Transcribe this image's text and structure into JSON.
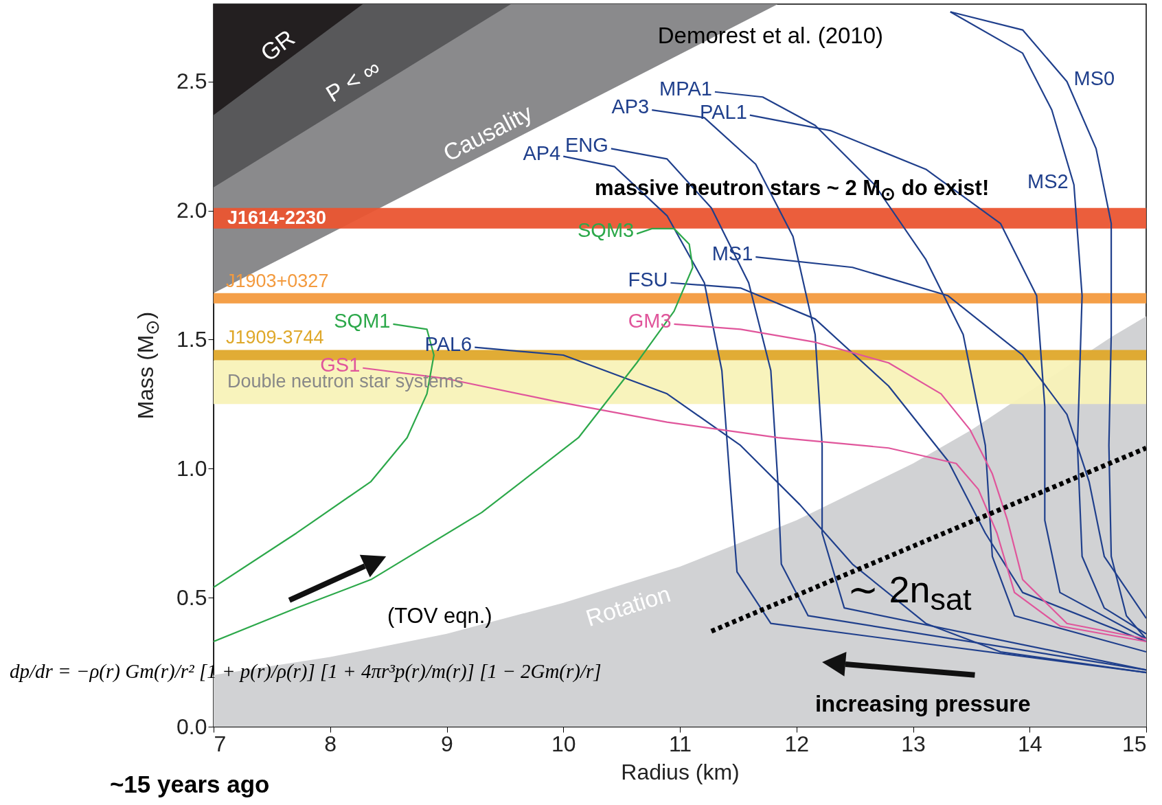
{
  "chart_data": {
    "type": "line",
    "xlabel": "Radius (km)",
    "ylabel": "Mass (M$_{⊙}$)",
    "xlim": [
      7,
      15
    ],
    "ylim": [
      0,
      2.8
    ],
    "xticks": [
      7,
      8,
      9,
      10,
      11,
      12,
      13,
      14,
      15
    ],
    "yticks": [
      {
        "value": 0,
        "label": "0.0"
      },
      {
        "value": 0.5,
        "label": "0.5"
      },
      {
        "value": 1,
        "label": "1.0"
      },
      {
        "value": 1.5,
        "label": "1.5"
      },
      {
        "value": 2,
        "label": "2.0"
      },
      {
        "value": 2.5,
        "label": "2.5"
      }
    ],
    "bands": [
      {
        "axis": "y",
        "from": 1.25,
        "to": 1.42,
        "label": "Double neutron star systems",
        "color": "#f8f2b8"
      },
      {
        "axis": "y",
        "from": 1.42,
        "to": 1.46,
        "label": "J1909-3744",
        "color": "#dfa82a"
      },
      {
        "axis": "y",
        "from": 1.64,
        "to": 1.68,
        "label": "J1903+0327",
        "color": "#f39a3e"
      },
      {
        "axis": "y",
        "from": 1.93,
        "to": 2.01,
        "label": "J1614-2230",
        "color": "#ea5532"
      }
    ],
    "series": [
      {
        "name": "Causality",
        "type": "area",
        "color": "#8a8a8c",
        "x": [
          7,
          11.84
        ],
        "values": [
          1.68,
          2.8
        ]
      },
      {
        "name": "P < ∞",
        "type": "area",
        "color": "#58585a",
        "x": [
          7,
          9.55
        ],
        "values": [
          2.09,
          2.8
        ]
      },
      {
        "name": "GR",
        "type": "area",
        "color": "#231f20",
        "x": [
          7,
          8.28
        ],
        "values": [
          2.37,
          2.8
        ]
      },
      {
        "name": "Rotation",
        "type": "area",
        "color": "#d1d2d4",
        "x": [
          7,
          8,
          9,
          10,
          11,
          12,
          13,
          13.5,
          14.7,
          15
        ],
        "values": [
          0.2,
          0.27,
          0.36,
          0.48,
          0.62,
          0.8,
          1.02,
          1.15,
          1.51,
          1.59
        ]
      },
      {
        "name": "MS0",
        "color": "#1f3f8c",
        "x": [
          13.32,
          13.94,
          14.32,
          14.57,
          14.7,
          14.7,
          14.68,
          14.7,
          14.83,
          15
        ],
        "values": [
          2.77,
          2.7,
          2.5,
          2.24,
          1.95,
          1.52,
          1.09,
          0.66,
          0.43,
          0.34
        ]
      },
      {
        "name": "MS2",
        "color": "#1f3f8c",
        "x": [
          13.32,
          13.94,
          14.19,
          14.38,
          14.45,
          14.41,
          14.45,
          14.64,
          15
        ],
        "values": [
          2.77,
          2.61,
          2.39,
          2.1,
          1.67,
          1.09,
          0.66,
          0.46,
          0.36
        ]
      },
      {
        "name": "MPA1",
        "color": "#1f3f8c",
        "x": [
          11.3,
          11.71,
          12.16,
          12.67,
          13.11,
          13.43,
          13.62,
          13.68,
          13.87,
          15
        ],
        "values": [
          2.46,
          2.44,
          2.33,
          2.1,
          1.81,
          1.52,
          1.09,
          0.66,
          0.43,
          0.29
        ]
      },
      {
        "name": "PAL1",
        "color": "#1f3f8c",
        "x": [
          11.6,
          12.29,
          13.11,
          13.75,
          14.06,
          14.13,
          14.13,
          14.26,
          15
        ],
        "values": [
          2.37,
          2.31,
          2.16,
          1.95,
          1.67,
          1.24,
          0.8,
          0.52,
          0.34
        ]
      },
      {
        "name": "AP3",
        "color": "#1f3f8c",
        "x": [
          10.76,
          11.21,
          11.65,
          11.97,
          12.16,
          12.22,
          12.22,
          12.41,
          15
        ],
        "values": [
          2.39,
          2.36,
          2.18,
          1.9,
          1.52,
          1.09,
          0.75,
          0.46,
          0.22
        ]
      },
      {
        "name": "ENG",
        "color": "#1f3f8c",
        "x": [
          10.41,
          10.89,
          11.27,
          11.59,
          11.78,
          11.84,
          11.87,
          12.1,
          15
        ],
        "values": [
          2.24,
          2.2,
          2.01,
          1.72,
          1.38,
          0.95,
          0.63,
          0.43,
          0.22
        ]
      },
      {
        "name": "AP4",
        "color": "#1f3f8c",
        "x": [
          10,
          10.44,
          10.89,
          11.21,
          11.36,
          11.43,
          11.49,
          11.78,
          15
        ],
        "values": [
          2.21,
          2.17,
          1.98,
          1.72,
          1.38,
          0.95,
          0.6,
          0.4,
          0.21
        ]
      },
      {
        "name": "MS1",
        "color": "#1f3f8c",
        "x": [
          11.65,
          12.48,
          13.3,
          13.94,
          14.32,
          14.51,
          14.64,
          15
        ],
        "values": [
          1.82,
          1.78,
          1.67,
          1.44,
          1.21,
          0.95,
          0.66,
          0.42
        ]
      },
      {
        "name": "FSU",
        "color": "#1f3f8c",
        "x": [
          10.92,
          11.52,
          12.16,
          12.79,
          13.3,
          13.62,
          13.94,
          15
        ],
        "values": [
          1.72,
          1.7,
          1.58,
          1.32,
          1.03,
          0.75,
          0.52,
          0.33
        ]
      },
      {
        "name": "PAL6",
        "color": "#1f3f8c",
        "x": [
          9.24,
          10,
          10.89,
          11.52,
          12.03,
          12.48,
          13.11,
          13.75,
          15
        ],
        "values": [
          1.47,
          1.44,
          1.29,
          1.09,
          0.86,
          0.63,
          0.4,
          0.29,
          0.21
        ]
      },
      {
        "name": "GM3",
        "color": "#e0559b",
        "x": [
          10.95,
          11.52,
          12.16,
          12.79,
          13.24,
          13.49,
          13.68,
          13.81,
          13.94,
          14.32,
          15
        ],
        "values": [
          1.56,
          1.54,
          1.49,
          1.41,
          1.29,
          1.15,
          0.98,
          0.8,
          0.57,
          0.4,
          0.34
        ]
      },
      {
        "name": "GS1",
        "color": "#e0559b",
        "x": [
          8.28,
          8.98,
          9.94,
          10.89,
          11.84,
          12.79,
          13.37,
          13.56,
          13.72,
          13.87,
          14.26,
          15
        ],
        "values": [
          1.39,
          1.35,
          1.26,
          1.18,
          1.12,
          1.08,
          1.02,
          0.92,
          0.75,
          0.52,
          0.39,
          0.33
        ]
      },
      {
        "name": "SQM1",
        "color": "#2ca84a",
        "x": [
          8.54,
          8.83,
          8.89,
          8.83,
          8.66,
          8.35,
          7.71,
          7
        ],
        "values": [
          1.56,
          1.54,
          1.44,
          1.29,
          1.12,
          0.95,
          0.75,
          0.54
        ]
      },
      {
        "name": "SQM3",
        "color": "#2ca84a",
        "x": [
          10.63,
          10.76,
          10.95,
          11.08,
          11.11,
          10.95,
          10.63,
          10.13,
          9.3,
          8.35,
          7.71,
          7
        ],
        "values": [
          1.91,
          1.93,
          1.93,
          1.87,
          1.78,
          1.61,
          1.41,
          1.12,
          0.83,
          0.57,
          0.46,
          0.33
        ]
      },
      {
        "type": "line",
        "line_style": "dotted",
        "color": "#000000",
        "x": [
          11.27,
          15
        ],
        "values": [
          0.37,
          1.08
        ]
      }
    ],
    "annotations": [
      "Demorest et al.  (2010)",
      "massive neutron stars ~ 2 M$_{⊙}$ do exist!",
      "(TOV eqn.)",
      "∼ 2n$_{sat}$",
      "increasing pressure",
      "~15 years ago",
      "dp/dr = −ρ(r) Gm(r)/r² [1 + p(r)/ρ(r)] [1 + 4πr³p(r)/m(r)] [1 − 2Gm(r)/r]"
    ]
  }
}
